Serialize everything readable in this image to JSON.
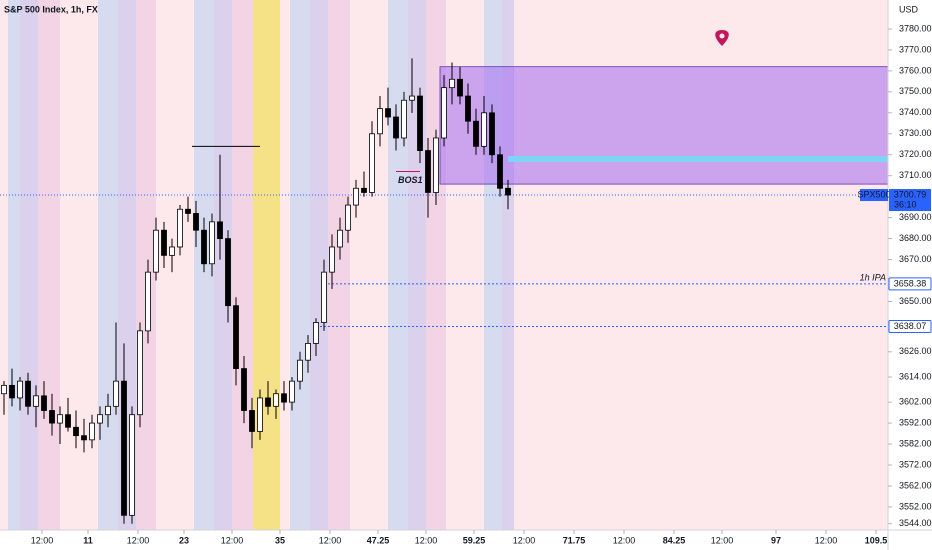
{
  "chart_data": {
    "type": "candlestick",
    "title": "S&P 500 Index, 1h, FX",
    "currency": "USD",
    "open": [
      3606,
      3610,
      3604,
      3612,
      3600,
      3605,
      3598,
      3592,
      3596,
      3590,
      3586,
      3584,
      3592,
      3596,
      3600,
      3612,
      3548,
      3596,
      3636,
      3664,
      3684,
      3672,
      3676,
      3694,
      3692,
      3684,
      3668,
      3688,
      3680,
      3648,
      3618,
      3598,
      3588,
      3604,
      3600,
      3606,
      3602,
      3612,
      3622,
      3630,
      3640,
      3664,
      3676,
      3684,
      3696,
      3704,
      3702,
      3730,
      3742,
      3738,
      3728,
      3746,
      3748,
      3722,
      3702,
      3728,
      3752,
      3756,
      3748,
      3736,
      3724,
      3740,
      3720,
      3704
    ],
    "high": [
      3612,
      3618,
      3614,
      3616,
      3610,
      3612,
      3606,
      3600,
      3604,
      3598,
      3594,
      3596,
      3600,
      3606,
      3640,
      3630,
      3600,
      3640,
      3670,
      3690,
      3688,
      3680,
      3696,
      3700,
      3698,
      3690,
      3692,
      3720,
      3684,
      3652,
      3624,
      3604,
      3608,
      3612,
      3608,
      3612,
      3614,
      3626,
      3634,
      3642,
      3670,
      3682,
      3690,
      3700,
      3708,
      3712,
      3736,
      3748,
      3752,
      3744,
      3750,
      3766,
      3752,
      3728,
      3732,
      3758,
      3764,
      3762,
      3754,
      3742,
      3748,
      3744,
      3724,
      3708
    ],
    "low": [
      3596,
      3600,
      3598,
      3596,
      3590,
      3594,
      3586,
      3582,
      3588,
      3580,
      3578,
      3580,
      3584,
      3590,
      3596,
      3544,
      3544,
      3590,
      3630,
      3660,
      3666,
      3664,
      3672,
      3688,
      3676,
      3664,
      3662,
      3670,
      3640,
      3610,
      3592,
      3580,
      3584,
      3596,
      3594,
      3598,
      3598,
      3608,
      3616,
      3624,
      3636,
      3656,
      3670,
      3678,
      3690,
      3700,
      3700,
      3724,
      3734,
      3722,
      3724,
      3740,
      3716,
      3690,
      3696,
      3724,
      3744,
      3744,
      3730,
      3720,
      3720,
      3716,
      3700,
      3694
    ],
    "close": [
      3610,
      3604,
      3612,
      3600,
      3605,
      3598,
      3592,
      3596,
      3590,
      3586,
      3584,
      3592,
      3596,
      3600,
      3612,
      3548,
      3596,
      3636,
      3664,
      3684,
      3672,
      3676,
      3694,
      3692,
      3684,
      3668,
      3688,
      3680,
      3648,
      3618,
      3598,
      3588,
      3604,
      3600,
      3606,
      3602,
      3612,
      3622,
      3630,
      3640,
      3664,
      3676,
      3684,
      3696,
      3704,
      3702,
      3730,
      3742,
      3738,
      3728,
      3746,
      3748,
      3722,
      3702,
      3728,
      3752,
      3756,
      3748,
      3736,
      3724,
      3740,
      3720,
      3704,
      3700.79
    ],
    "up_color": "#ffffff",
    "down_color": "#000000",
    "xlim": [
      0,
      111
    ],
    "xticks": [
      {
        "value": 5.25,
        "label": "12:00"
      },
      11,
      {
        "value": 17.25,
        "label": "12:00"
      },
      23,
      {
        "value": 29,
        "label": "12:00"
      },
      35,
      {
        "value": 41.25,
        "label": "12:00"
      },
      47.25,
      {
        "value": 53.25,
        "label": "12:00"
      },
      59.25,
      {
        "value": 65.5,
        "label": "12:00"
      },
      71.75,
      {
        "value": 78,
        "label": "12:00"
      },
      84.25,
      {
        "value": 90.25,
        "label": "12:00"
      },
      97,
      {
        "value": 103.25,
        "label": "12:00"
      },
      109.5
    ],
    "ylim": [
      3541,
      3790
    ],
    "yticks": [
      {
        "value": 3544,
        "label": "3544.00"
      },
      {
        "value": 3552,
        "label": "3552.00"
      },
      {
        "value": 3562,
        "label": "3562.00"
      },
      {
        "value": 3572,
        "label": "3572.00"
      },
      {
        "value": 3582,
        "label": "3582.00"
      },
      {
        "value": 3592,
        "label": "3592.00"
      },
      {
        "value": 3602,
        "label": "3602.00"
      },
      {
        "value": 3614,
        "label": "3614.00"
      },
      {
        "value": 3626,
        "label": "3626.00"
      },
      {
        "value": 3650,
        "label": "3650.00"
      },
      {
        "value": 3670,
        "label": "3670.00"
      },
      {
        "value": 3680,
        "label": "3680.00"
      },
      {
        "value": 3690,
        "label": "3690.00"
      },
      {
        "value": 3710,
        "label": "3710.00"
      },
      {
        "value": 3720,
        "label": "3720.00"
      },
      {
        "value": 3730,
        "label": "3730.00"
      },
      {
        "value": 3740,
        "label": "3740.00"
      },
      {
        "value": 3750,
        "label": "3750.00"
      },
      {
        "value": 3760,
        "label": "3760.00"
      },
      {
        "value": 3770,
        "label": "3770.00"
      },
      {
        "value": 3780,
        "label": "3780.00"
      }
    ],
    "last_price": {
      "symbol": "SPX500",
      "value": 3700.79,
      "countdown": "36:10",
      "color": "#2962ff"
    },
    "levels": [
      {
        "value": 3658.38,
        "start": 40.5,
        "label": "1h IPA",
        "color": "#2962ff"
      },
      {
        "value": 3638.07,
        "start": 39.5,
        "color": "#2962ff"
      }
    ],
    "zone": {
      "low": 3706,
      "high": 3762,
      "start": 55,
      "color": "#a46bf0"
    },
    "zone_line": {
      "value": 3718,
      "start": 63.5,
      "color": "#7fd3f5"
    },
    "bos": {
      "label": "BOS1",
      "value": 3712,
      "start": 49.5,
      "end": 52.5
    },
    "swing_line": {
      "value": 3724,
      "start": 24,
      "end": 32.5
    }
  }
}
